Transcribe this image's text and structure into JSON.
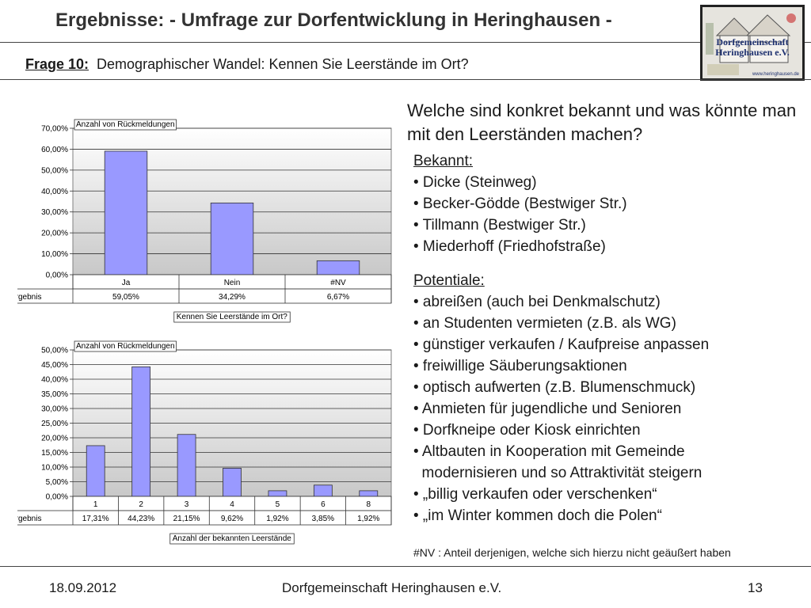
{
  "header": {
    "title": "Ergebnisse: - Umfrage zur Dorfentwicklung in Heringhausen -",
    "logo_line1": "Dorfgemeinschaft",
    "logo_line2": "Heringhausen e.V.",
    "logo_url": "www.heringhausen.de"
  },
  "question": {
    "label": "Frage 10:",
    "text": "Demographischer Wandel: Kennen Sie Leerstände im Ort?"
  },
  "right": {
    "question": "Welche sind konkret bekannt und was könnte man mit den Leerständen machen?",
    "bekannt_title": "Bekannt:",
    "bekannt": [
      "• Dicke (Steinweg)",
      "• Becker-Gödde (Bestwiger Str.)",
      "• Tillmann (Bestwiger Str.)",
      "• Miederhoff (Friedhofstraße)"
    ],
    "potentiale_title": "Potentiale:",
    "potentiale": [
      "• abreißen (auch bei Denkmalschutz)",
      "• an Studenten vermieten (z.B. als WG)",
      "• günstiger verkaufen / Kaufpreise anpassen",
      "• freiwillige Säuberungsaktionen",
      "• optisch aufwerten (z.B. Blumenschmuck)",
      "• Anmieten für jugendliche und Senioren",
      "• Dorfkneipe oder Kiosk einrichten",
      "• Altbauten in Kooperation mit Gemeinde",
      "  modernisieren und so Attraktivität steigern",
      "• „billig verkaufen oder verschenken“",
      "• „im Winter kommen doch die Polen“"
    ],
    "note": "#NV :  Anteil derjenigen, welche sich hierzu nicht geäußert haben"
  },
  "footer": {
    "date": "18.09.2012",
    "org": "Dorfgemeinschaft Heringhausen e.V.",
    "page": "13"
  },
  "chart_data": [
    {
      "type": "bar",
      "title": "Anzahl von Rückmeldungen",
      "xlabel": "Kennen Sie Leerstände im Ort?",
      "categories": [
        "Ja",
        "Nein",
        "#NV"
      ],
      "series": [
        {
          "name": "Ergebnis",
          "values": [
            59.05,
            34.29,
            6.67
          ],
          "labels": [
            "59,05%",
            "34,29%",
            "6,67%"
          ]
        }
      ],
      "yticks": [
        "0,00%",
        "10,00%",
        "20,00%",
        "30,00%",
        "40,00%",
        "50,00%",
        "60,00%",
        "70,00%"
      ],
      "ylim": [
        0,
        70
      ],
      "bar_color": "#9999ff",
      "grid": true
    },
    {
      "type": "bar",
      "title": "Anzahl von Rückmeldungen",
      "xlabel": "Anzahl der bekannten Leerstände",
      "categories": [
        "1",
        "2",
        "3",
        "4",
        "5",
        "6",
        "8"
      ],
      "series": [
        {
          "name": "Ergebnis",
          "values": [
            17.31,
            44.23,
            21.15,
            9.62,
            1.92,
            3.85,
            1.92
          ],
          "labels": [
            "17,31%",
            "44,23%",
            "21,15%",
            "9,62%",
            "1,92%",
            "3,85%",
            "1,92%"
          ]
        }
      ],
      "yticks": [
        "0,00%",
        "5,00%",
        "10,00%",
        "15,00%",
        "20,00%",
        "25,00%",
        "30,00%",
        "35,00%",
        "40,00%",
        "45,00%",
        "50,00%"
      ],
      "ylim": [
        0,
        50
      ],
      "bar_color": "#9999ff",
      "grid": true
    }
  ]
}
